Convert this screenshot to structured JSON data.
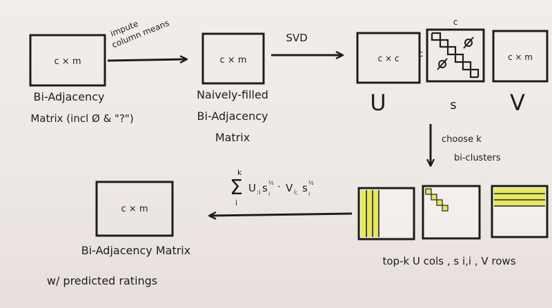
{
  "boxes": {
    "input": {
      "dims": "c × m",
      "caption_line1": "Bi-Adjacency",
      "caption_line2": "Matrix (incl Ø & \"?\")"
    },
    "filled": {
      "dims": "c × m",
      "caption_line1": "Naively-filled",
      "caption_line2": "Bi-Adjacency",
      "caption_line3": "Matrix"
    },
    "u": {
      "dims": "c × c",
      "caption": "U"
    },
    "s": {
      "caption": "s",
      "top_label": "c",
      "side_label": "c",
      "zero_symbol": "Ø"
    },
    "v": {
      "dims": "c × m",
      "caption": "V"
    },
    "output": {
      "dims": "c × m",
      "caption_line1": "Bi-Adjacency  Matrix",
      "caption_line2": "w/ predicted ratings"
    },
    "topk_caption": "top-k  U cols ,  s i,i ,  V rows"
  },
  "arrows": {
    "impute_line1": "impute",
    "impute_line2": "column means",
    "svd": "SVD",
    "choose_line1": "choose  k",
    "choose_line2": "bi-clusters",
    "formula": "Σ U·s^½ · V·s^½",
    "formula_upper": "k",
    "formula_lower": "i"
  },
  "colors": {
    "highlight": "#e6e85a",
    "ink": "#1e1c1c"
  }
}
